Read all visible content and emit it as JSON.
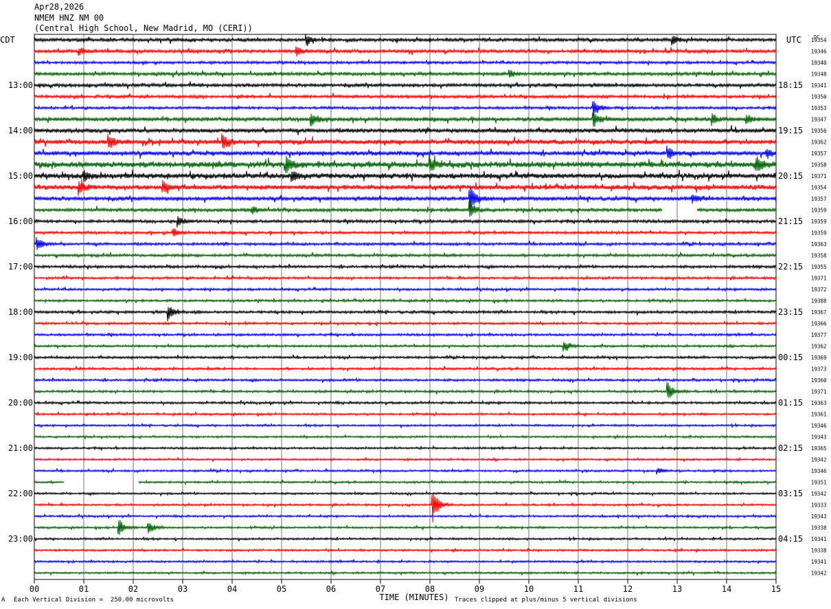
{
  "header": {
    "date": "Apr28,2026",
    "station": "NMEM HNZ NM 00",
    "location": "(Central High School, New Madrid, MO (CERI))"
  },
  "left_tz": "CDT",
  "right_tz": "UTC",
  "dc_label": "DC",
  "footer": {
    "scale_note": "Each Vertical Division =  250.00 microvolts",
    "clip_note": "Traces clipped at plus/minus 5 vertical divisions",
    "mark": "A"
  },
  "colors": {
    "trace_cycle": [
      "#000000",
      "#ff0000",
      "#0000ff",
      "#006400"
    ],
    "grid": "#555555"
  },
  "chart_data": {
    "type": "line",
    "title": "NMEM HNZ NM 00",
    "xlabel": "TIME (MINUTES)",
    "x_ticks": [
      "00",
      "01",
      "02",
      "03",
      "04",
      "05",
      "06",
      "07",
      "08",
      "09",
      "10",
      "11",
      "12",
      "13",
      "14",
      "15"
    ],
    "xlim": [
      0,
      15
    ],
    "left_labels": [
      {
        "row": 4,
        "text": "13:00"
      },
      {
        "row": 8,
        "text": "14:00"
      },
      {
        "row": 12,
        "text": "15:00"
      },
      {
        "row": 16,
        "text": "16:00"
      },
      {
        "row": 20,
        "text": "17:00"
      },
      {
        "row": 24,
        "text": "18:00"
      },
      {
        "row": 28,
        "text": "19:00"
      },
      {
        "row": 32,
        "text": "20:00"
      },
      {
        "row": 36,
        "text": "21:00"
      },
      {
        "row": 40,
        "text": "22:00"
      },
      {
        "row": 44,
        "text": "23:00"
      }
    ],
    "right_labels": [
      {
        "row": 4,
        "text": "18:15"
      },
      {
        "row": 8,
        "text": "19:15"
      },
      {
        "row": 12,
        "text": "20:15"
      },
      {
        "row": 16,
        "text": "21:15"
      },
      {
        "row": 20,
        "text": "22:15"
      },
      {
        "row": 24,
        "text": "23:15"
      },
      {
        "row": 28,
        "text": "00:15"
      },
      {
        "row": 32,
        "text": "01:15"
      },
      {
        "row": 36,
        "text": "02:15"
      },
      {
        "row": 40,
        "text": "03:15"
      },
      {
        "row": 44,
        "text": "04:15"
      }
    ],
    "dc_values": [
      "19354",
      "19346",
      "19340",
      "19348",
      "19341",
      "19350",
      "19353",
      "19347",
      "19356",
      "19362",
      "19357",
      "19358",
      "19371",
      "19354",
      "19357",
      "19359",
      "19359",
      "19359",
      "19363",
      "19358",
      "19355",
      "19371",
      "19372",
      "19388",
      "19367",
      "19366",
      "19377",
      "19362",
      "19369",
      "19373",
      "19360",
      "19371",
      "19363",
      "19361",
      "19346",
      "19343",
      "19365",
      "19342",
      "19346",
      "19351",
      "19342",
      "19333",
      "19343",
      "19338",
      "19341",
      "19338",
      "19341",
      "19342"
    ],
    "noise": [
      1.0,
      1.0,
      0.8,
      1.0,
      1.0,
      0.9,
      0.8,
      1.2,
      1.3,
      1.4,
      1.3,
      1.8,
      1.6,
      1.4,
      1.2,
      1.0,
      0.9,
      0.8,
      0.8,
      0.8,
      0.8,
      0.7,
      0.7,
      0.7,
      0.8,
      0.7,
      0.7,
      0.7,
      0.7,
      0.7,
      0.7,
      0.7,
      0.7,
      0.6,
      0.6,
      0.6,
      0.6,
      0.6,
      0.6,
      0.6,
      0.6,
      0.6,
      0.6,
      0.6,
      0.6,
      0.6,
      0.6,
      0.6
    ],
    "events": [
      {
        "row": 0,
        "t": 5.5,
        "amp": 7
      },
      {
        "row": 0,
        "t": 12.9,
        "amp": 7
      },
      {
        "row": 1,
        "t": 5.3,
        "amp": 8
      },
      {
        "row": 1,
        "t": 0.9,
        "amp": 5
      },
      {
        "row": 3,
        "t": 9.6,
        "amp": 6
      },
      {
        "row": 6,
        "t": 11.3,
        "amp": 12
      },
      {
        "row": 7,
        "t": 5.6,
        "amp": 10
      },
      {
        "row": 7,
        "t": 11.3,
        "amp": 12
      },
      {
        "row": 7,
        "t": 13.7,
        "amp": 8
      },
      {
        "row": 7,
        "t": 14.4,
        "amp": 8
      },
      {
        "row": 9,
        "t": 1.5,
        "amp": 10
      },
      {
        "row": 9,
        "t": 3.8,
        "amp": 12
      },
      {
        "row": 10,
        "t": 12.8,
        "amp": 10
      },
      {
        "row": 10,
        "t": 14.8,
        "amp": 6
      },
      {
        "row": 11,
        "t": 5.1,
        "amp": 12
      },
      {
        "row": 11,
        "t": 8.0,
        "amp": 8
      },
      {
        "row": 11,
        "t": 14.6,
        "amp": 10
      },
      {
        "row": 12,
        "t": 5.2,
        "amp": 9
      },
      {
        "row": 12,
        "t": 1.0,
        "amp": 7
      },
      {
        "row": 13,
        "t": 0.9,
        "amp": 10
      },
      {
        "row": 13,
        "t": 2.6,
        "amp": 10
      },
      {
        "row": 14,
        "t": 8.8,
        "amp": 20
      },
      {
        "row": 14,
        "t": 13.3,
        "amp": 6
      },
      {
        "row": 15,
        "t": 4.4,
        "amp": 6
      },
      {
        "row": 15,
        "t": 8.8,
        "amp": 14
      },
      {
        "row": 16,
        "t": 2.9,
        "amp": 7
      },
      {
        "row": 17,
        "t": 2.8,
        "amp": 8
      },
      {
        "row": 18,
        "t": 0.05,
        "amp": 10
      },
      {
        "row": 24,
        "t": 2.7,
        "amp": 12
      },
      {
        "row": 27,
        "t": 10.7,
        "amp": 10
      },
      {
        "row": 31,
        "t": 12.8,
        "amp": 14
      },
      {
        "row": 38,
        "t": 12.6,
        "amp": 4
      },
      {
        "row": 41,
        "t": 8.05,
        "amp": 26
      },
      {
        "row": 43,
        "t": 1.7,
        "amp": 14
      },
      {
        "row": 43,
        "t": 2.3,
        "amp": 10
      }
    ],
    "gaps": [
      {
        "row": 15,
        "t0": 12.7,
        "t1": 13.4
      },
      {
        "row": 39,
        "t0": 0.6,
        "t1": 2.1
      }
    ],
    "ylim": [
      -5,
      5
    ]
  }
}
